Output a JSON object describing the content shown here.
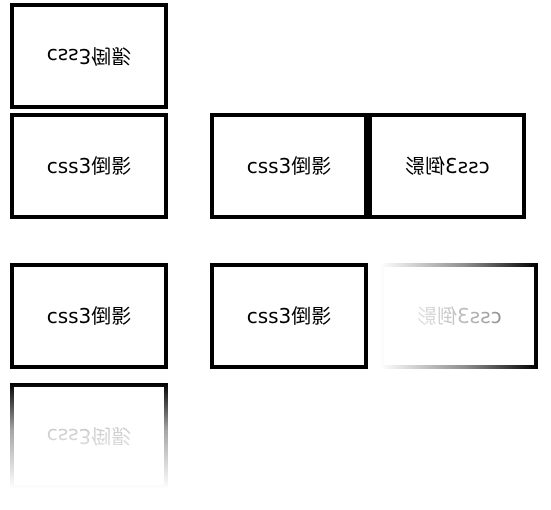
{
  "demos": {
    "reflect_above": {
      "box_text": "css3倒影",
      "reflection_text": "css3倒影"
    },
    "reflect_right": {
      "box_text": "css3倒影",
      "reflection_text": "css3倒影"
    },
    "reflect_right_faded": {
      "box_text": "css3倒影",
      "reflection_text": "css3倒影"
    },
    "reflect_below_faded": {
      "box_text": "css3倒影",
      "reflection_text": "css3倒影"
    }
  },
  "colors": {
    "border": "#000000",
    "background": "#ffffff",
    "text": "#000000"
  }
}
